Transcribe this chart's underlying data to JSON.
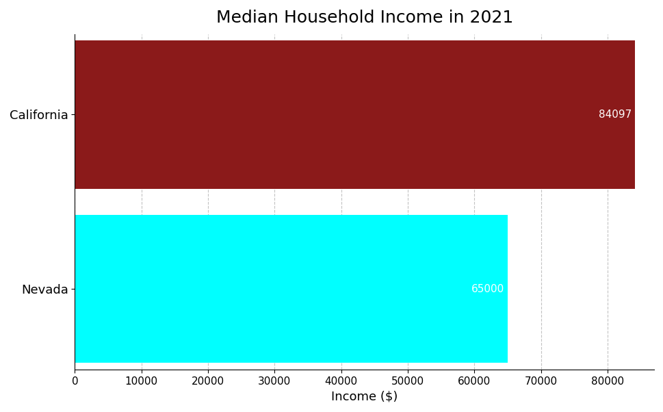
{
  "title": "Median Household Income in 2021",
  "categories": [
    "Nevada",
    "California"
  ],
  "values": [
    65000,
    84097
  ],
  "bar_colors": [
    "#00FFFF",
    "#8B1A1A"
  ],
  "xlabel": "Income ($)",
  "xlim": [
    0,
    87000
  ],
  "xticks": [
    0,
    10000,
    20000,
    30000,
    40000,
    50000,
    60000,
    70000,
    80000
  ],
  "background_color": "#ffffff",
  "label_fontsize": 13,
  "title_fontsize": 18,
  "tick_fontsize": 11,
  "grid_color": "#aaaaaa",
  "value_label_color": "#ffffff",
  "value_label_fontsize": 11,
  "bar_height": 0.85
}
